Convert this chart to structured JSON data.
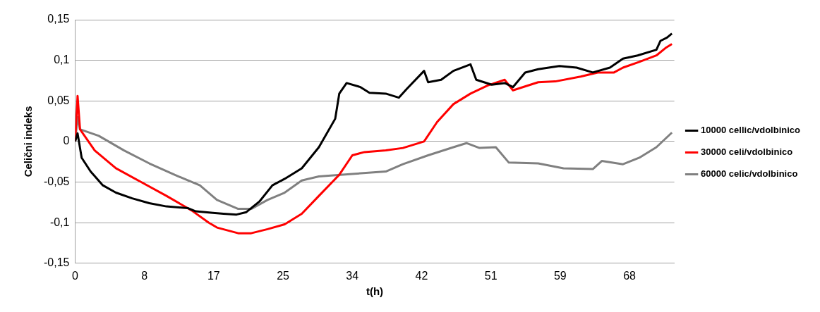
{
  "chart_data": {
    "type": "line",
    "xlabel": "t(h)",
    "ylabel": "Celični indeks",
    "xlim": [
      0,
      73.5
    ],
    "xticks": [
      0,
      {
        "value": 8.5,
        "label": "8"
      },
      17,
      {
        "value": 25.5,
        "label": "25"
      },
      34,
      {
        "value": 42.5,
        "label": "42"
      },
      51,
      {
        "value": 59.5,
        "label": "59"
      },
      68
    ],
    "ylim": [
      -0.15,
      0.15
    ],
    "yticks": [
      {
        "value": -0.15,
        "label": "-0,15"
      },
      {
        "value": -0.1,
        "label": "-0,1"
      },
      {
        "value": -0.05,
        "label": "-0,05"
      },
      0,
      {
        "value": 0.05,
        "label": "0,05"
      },
      {
        "value": 0.1,
        "label": "0,1"
      },
      {
        "value": 0.15,
        "label": "0,15"
      }
    ],
    "grid": "y",
    "legend": "right",
    "marker": "none",
    "line_style": "solid",
    "series": [
      {
        "name": "10000 cellic/vdolbinico",
        "color": "#000000",
        "x": [
          0,
          0.3,
          0.8,
          1.9,
          3.4,
          5,
          7,
          9.1,
          11.2,
          13.8,
          14.8,
          16.9,
          18.2,
          19.8,
          21,
          22.6,
          24.2,
          25.7,
          27.8,
          29.9,
          31.9,
          32.4,
          33.3,
          35,
          36.1,
          38.1,
          39.7,
          40.7,
          42.8,
          43.3,
          44.9,
          46.4,
          48.5,
          49.2,
          51.1,
          52.7,
          53.7,
          55.2,
          56.8,
          59.4,
          61.5,
          63.5,
          65.6,
          67.2,
          69,
          71.3,
          71.8,
          72.6,
          73.2
        ],
        "values": [
          0,
          0.01,
          -0.02,
          -0.037,
          -0.054,
          -0.063,
          -0.07,
          -0.076,
          -0.08,
          -0.082,
          -0.086,
          -0.088,
          -0.089,
          -0.09,
          -0.087,
          -0.074,
          -0.054,
          -0.046,
          -0.033,
          -0.007,
          0.028,
          0.059,
          0.072,
          0.067,
          0.06,
          0.059,
          0.054,
          0.065,
          0.087,
          0.073,
          0.076,
          0.087,
          0.095,
          0.076,
          0.07,
          0.072,
          0.067,
          0.085,
          0.089,
          0.093,
          0.091,
          0.085,
          0.091,
          0.102,
          0.106,
          0.113,
          0.124,
          0.128,
          0.133
        ]
      },
      {
        "name": "30000 celi/vdolbinico",
        "color": "#ff0000",
        "x": [
          0,
          0.3,
          0.6,
          2.4,
          5,
          8.1,
          11.2,
          14.3,
          16.4,
          17.4,
          20,
          21.6,
          23.6,
          25.7,
          27.8,
          29.9,
          32.4,
          34,
          35.5,
          38.1,
          40.2,
          42.8,
          44.4,
          46.4,
          48.5,
          50.6,
          52.7,
          53.7,
          56.8,
          58.9,
          62,
          64.1,
          66.1,
          67.2,
          69.2,
          71.3,
          72.4,
          73.2
        ],
        "values": [
          0,
          0.056,
          0.015,
          -0.011,
          -0.033,
          -0.05,
          -0.067,
          -0.085,
          -0.1,
          -0.106,
          -0.113,
          -0.113,
          -0.108,
          -0.102,
          -0.089,
          -0.067,
          -0.041,
          -0.017,
          -0.013,
          -0.011,
          -0.008,
          0,
          0.024,
          0.046,
          0.059,
          0.069,
          0.076,
          0.063,
          0.073,
          0.074,
          0.08,
          0.085,
          0.085,
          0.091,
          0.098,
          0.106,
          0.115,
          0.12
        ]
      },
      {
        "name": "60000 celic/vdolbinico",
        "color": "#808080",
        "x": [
          0,
          0.3,
          0.6,
          2.9,
          6,
          9.1,
          12.2,
          15.3,
          17.4,
          20,
          21.6,
          23.6,
          25.7,
          27.8,
          29.9,
          34,
          38.1,
          40.2,
          43.3,
          46.4,
          48,
          49.6,
          51.6,
          53.2,
          56.8,
          59.9,
          63.5,
          64.6,
          67.2,
          69.2,
          71.3,
          73.2
        ],
        "values": [
          0,
          0.03,
          0.015,
          0.007,
          -0.011,
          -0.027,
          -0.041,
          -0.054,
          -0.072,
          -0.083,
          -0.083,
          -0.072,
          -0.063,
          -0.048,
          -0.043,
          -0.04,
          -0.037,
          -0.028,
          -0.017,
          -0.007,
          -0.002,
          -0.008,
          -0.007,
          -0.026,
          -0.027,
          -0.033,
          -0.034,
          -0.024,
          -0.028,
          -0.02,
          -0.007,
          0.011
        ]
      }
    ]
  }
}
